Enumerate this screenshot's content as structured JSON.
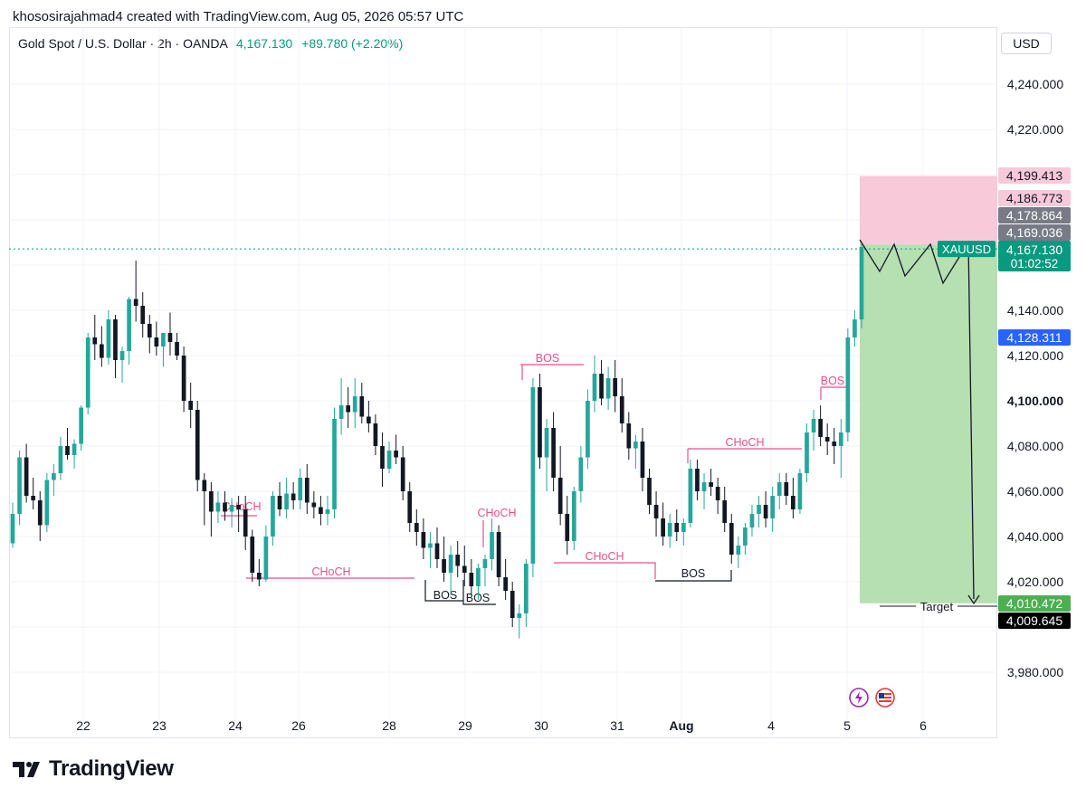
{
  "attribution": "khososirajahmad4 created with TradingView.com, Aug 05, 2026 05:57 UTC",
  "symbol": {
    "title": "Gold Spot / U.S. Dollar · 2h · OANDA",
    "price": "4,167.130",
    "change": "+89.780 (+2.20%)"
  },
  "currency_button": "USD",
  "brand": "TradingView",
  "colors": {
    "up": "#26a69a",
    "down": "#131722",
    "annot": "#e8508a",
    "risk": "#f8c9d9",
    "reward": "#b6dfb2",
    "price_tag": "#089981",
    "entry_tag": "#2962ff"
  },
  "chart_data": {
    "type": "candlestick",
    "ylim": [
      3965,
      4255
    ],
    "y_ticks": [
      "3,980.000",
      "4,020.000",
      "4,040.000",
      "4,060.000",
      "4,080.000",
      "4,100.000",
      "4,120.000",
      "4,140.000",
      "4,220.000",
      "4,240.000"
    ],
    "x_ticks": [
      "22",
      "23",
      "24",
      "26",
      "28",
      "29",
      "30",
      "31",
      "Aug",
      "4",
      "5",
      "6"
    ],
    "price_labels": [
      {
        "text": "4,199.413",
        "value": 4199.413,
        "bg": "#f8c9d9",
        "fg": "#131722"
      },
      {
        "text": "4,186.773",
        "value": 4186.773,
        "bg": "#f8c9d9",
        "fg": "#131722"
      },
      {
        "text": "4,178.864",
        "value": 4178.864,
        "bg": "#787b86",
        "fg": "#ffffff"
      },
      {
        "text": "4,169.036",
        "value": 4169.036,
        "bg": "#787b86",
        "fg": "#ffffff"
      },
      {
        "text": "4,128.311",
        "value": 4128.311,
        "bg": "#2962ff",
        "fg": "#ffffff"
      },
      {
        "text": "4,010.472",
        "value": 4010.472,
        "bg": "#4caf50",
        "fg": "#ffffff"
      },
      {
        "text": "4,009.645",
        "value": 4009.645,
        "bg": "#000000",
        "fg": "#ffffff"
      }
    ],
    "last_price": {
      "text": "4,167.130",
      "countdown": "01:02:52",
      "value": 4167.13,
      "ticker": "XAUUSD"
    },
    "annotations": [
      {
        "text": "CHoCH"
      },
      {
        "text": "CHoCH"
      },
      {
        "text": "BOS"
      },
      {
        "text": "BOS"
      },
      {
        "text": "CHoCH"
      },
      {
        "text": "BOS"
      },
      {
        "text": "CHoCH"
      },
      {
        "text": "BOS"
      },
      {
        "text": "CHoCH"
      },
      {
        "text": "BOS"
      }
    ],
    "target_label": "Target",
    "position": {
      "entry": 4169.036,
      "stop": 4199.413,
      "target": 4010.472
    },
    "candles": [
      [
        4037,
        4055,
        4035,
        4050
      ],
      [
        4050,
        4078,
        4045,
        4075
      ],
      [
        4075,
        4081,
        4055,
        4058
      ],
      [
        4058,
        4066,
        4052,
        4056
      ],
      [
        4056,
        4060,
        4038,
        4045
      ],
      [
        4045,
        4068,
        4042,
        4065
      ],
      [
        4065,
        4072,
        4058,
        4068
      ],
      [
        4068,
        4084,
        4065,
        4080
      ],
      [
        4080,
        4088,
        4074,
        4076
      ],
      [
        4076,
        4083,
        4070,
        4081
      ],
      [
        4081,
        4098,
        4078,
        4097
      ],
      [
        4097,
        4130,
        4094,
        4128
      ],
      [
        4128,
        4138,
        4118,
        4125
      ],
      [
        4125,
        4133,
        4115,
        4119
      ],
      [
        4119,
        4140,
        4116,
        4136
      ],
      [
        4136,
        4138,
        4110,
        4118
      ],
      [
        4118,
        4124,
        4108,
        4122
      ],
      [
        4122,
        4146,
        4116,
        4145
      ],
      [
        4145,
        4162,
        4135,
        4142
      ],
      [
        4142,
        4148,
        4128,
        4134
      ],
      [
        4134,
        4138,
        4121,
        4128
      ],
      [
        4128,
        4135,
        4120,
        4124
      ],
      [
        4124,
        4130,
        4115,
        4130
      ],
      [
        4130,
        4139,
        4120,
        4126
      ],
      [
        4126,
        4130,
        4118,
        4120
      ],
      [
        4120,
        4124,
        4095,
        4100
      ],
      [
        4100,
        4108,
        4088,
        4096
      ],
      [
        4096,
        4100,
        4060,
        4065
      ],
      [
        4065,
        4068,
        4045,
        4060
      ],
      [
        4060,
        4064,
        4040,
        4051
      ],
      [
        4051,
        4060,
        4046,
        4055
      ],
      [
        4055,
        4060,
        4047,
        4051
      ],
      [
        4051,
        4057,
        4044,
        4054
      ],
      [
        4054,
        4058,
        4042,
        4052
      ],
      [
        4052,
        4058,
        4034,
        4040
      ],
      [
        4040,
        4043,
        4020,
        4024
      ],
      [
        4024,
        4030,
        4018,
        4021
      ],
      [
        4021,
        4045,
        4020,
        4040
      ],
      [
        4040,
        4060,
        4036,
        4058
      ],
      [
        4058,
        4064,
        4049,
        4052
      ],
      [
        4052,
        4066,
        4048,
        4059
      ],
      [
        4059,
        4064,
        4052,
        4056
      ],
      [
        4056,
        4070,
        4052,
        4066
      ],
      [
        4066,
        4072,
        4050,
        4055
      ],
      [
        4055,
        4060,
        4048,
        4053
      ],
      [
        4053,
        4058,
        4045,
        4050
      ],
      [
        4050,
        4058,
        4045,
        4052
      ],
      [
        4052,
        4097,
        4048,
        4092
      ],
      [
        4092,
        4110,
        4085,
        4098
      ],
      [
        4098,
        4106,
        4088,
        4095
      ],
      [
        4095,
        4110,
        4088,
        4102
      ],
      [
        4102,
        4108,
        4090,
        4093
      ],
      [
        4093,
        4100,
        4086,
        4090
      ],
      [
        4090,
        4094,
        4076,
        4080
      ],
      [
        4080,
        4086,
        4062,
        4070
      ],
      [
        4070,
        4082,
        4068,
        4078
      ],
      [
        4078,
        4085,
        4072,
        4075
      ],
      [
        4075,
        4080,
        4056,
        4060
      ],
      [
        4060,
        4064,
        4042,
        4046
      ],
      [
        4046,
        4052,
        4036,
        4042
      ],
      [
        4042,
        4048,
        4030,
        4035
      ],
      [
        4035,
        4042,
        4026,
        4037
      ],
      [
        4037,
        4044,
        4026,
        4030
      ],
      [
        4030,
        4040,
        4020,
        4024
      ],
      [
        4024,
        4036,
        4014,
        4032
      ],
      [
        4032,
        4038,
        4022,
        4027
      ],
      [
        4027,
        4036,
        4018,
        4024
      ],
      [
        4024,
        4030,
        4014,
        4018
      ],
      [
        4018,
        4028,
        4012,
        4026
      ],
      [
        4026,
        4032,
        4018,
        4030
      ],
      [
        4030,
        4048,
        4025,
        4042
      ],
      [
        4042,
        4045,
        4018,
        4022
      ],
      [
        4022,
        4030,
        4012,
        4016
      ],
      [
        4016,
        4020,
        4000,
        4004
      ],
      [
        4004,
        4010,
        3995,
        4006
      ],
      [
        4006,
        4030,
        4000,
        4028
      ],
      [
        4028,
        4110,
        4022,
        4106
      ],
      [
        4106,
        4112,
        4070,
        4075
      ],
      [
        4075,
        4092,
        4060,
        4088
      ],
      [
        4088,
        4095,
        4060,
        4066
      ],
      [
        4066,
        4080,
        4045,
        4050
      ],
      [
        4050,
        4058,
        4032,
        4038
      ],
      [
        4038,
        4062,
        4034,
        4060
      ],
      [
        4060,
        4080,
        4055,
        4075
      ],
      [
        4075,
        4105,
        4070,
        4100
      ],
      [
        4100,
        4120,
        4095,
        4112
      ],
      [
        4112,
        4118,
        4098,
        4101
      ],
      [
        4101,
        4115,
        4096,
        4110
      ],
      [
        4110,
        4118,
        4095,
        4102
      ],
      [
        4102,
        4110,
        4086,
        4090
      ],
      [
        4090,
        4095,
        4074,
        4079
      ],
      [
        4079,
        4085,
        4070,
        4082
      ],
      [
        4082,
        4088,
        4060,
        4066
      ],
      [
        4066,
        4070,
        4050,
        4054
      ],
      [
        4054,
        4060,
        4040,
        4048
      ],
      [
        4048,
        4055,
        4036,
        4040
      ],
      [
        4040,
        4050,
        4035,
        4046
      ],
      [
        4046,
        4052,
        4038,
        4042
      ],
      [
        4042,
        4048,
        4036,
        4046
      ],
      [
        4046,
        4074,
        4044,
        4070
      ],
      [
        4070,
        4074,
        4056,
        4060
      ],
      [
        4060,
        4068,
        4052,
        4064
      ],
      [
        4064,
        4070,
        4058,
        4062
      ],
      [
        4062,
        4066,
        4050,
        4056
      ],
      [
        4056,
        4062,
        4042,
        4046
      ],
      [
        4046,
        4050,
        4028,
        4032
      ],
      [
        4032,
        4040,
        4026,
        4036
      ],
      [
        4036,
        4046,
        4032,
        4044
      ],
      [
        4044,
        4054,
        4040,
        4050
      ],
      [
        4050,
        4058,
        4044,
        4054
      ],
      [
        4054,
        4060,
        4044,
        4048
      ],
      [
        4048,
        4062,
        4042,
        4058
      ],
      [
        4058,
        4068,
        4052,
        4064
      ],
      [
        4064,
        4068,
        4054,
        4058
      ],
      [
        4058,
        4066,
        4048,
        4052
      ],
      [
        4052,
        4070,
        4050,
        4068
      ],
      [
        4068,
        4090,
        4064,
        4086
      ],
      [
        4086,
        4096,
        4078,
        4092
      ],
      [
        4092,
        4098,
        4080,
        4084
      ],
      [
        4084,
        4090,
        4076,
        4082
      ],
      [
        4082,
        4088,
        4072,
        4080
      ],
      [
        4080,
        4092,
        4066,
        4086
      ],
      [
        4086,
        4132,
        4082,
        4128
      ],
      [
        4128,
        4140,
        4124,
        4136
      ],
      [
        4136,
        4170,
        4132,
        4168
      ]
    ]
  }
}
